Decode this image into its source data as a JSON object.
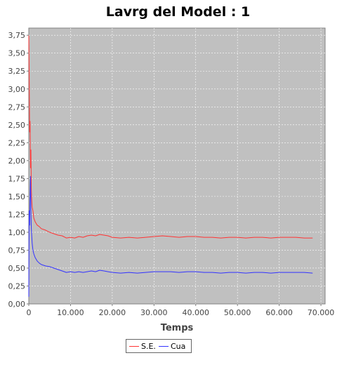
{
  "chart_data": {
    "type": "line",
    "title": "Lavrg del Model : 1",
    "xlabel": "Temps",
    "ylabel": "",
    "xlim": [
      0,
      71000
    ],
    "ylim": [
      0,
      3.85
    ],
    "x_ticks": [
      0,
      10000,
      20000,
      30000,
      40000,
      50000,
      60000,
      70000
    ],
    "x_tick_labels": [
      "0",
      "10.000",
      "20.000",
      "30.000",
      "40.000",
      "50.000",
      "60.000",
      "70.000"
    ],
    "y_ticks": [
      0,
      0.25,
      0.5,
      0.75,
      1.0,
      1.25,
      1.5,
      1.75,
      2.0,
      2.25,
      2.5,
      2.75,
      3.0,
      3.25,
      3.5,
      3.75
    ],
    "y_tick_labels": [
      "0,00",
      "0,25",
      "0,50",
      "0,75",
      "1,00",
      "1,25",
      "1,50",
      "1,75",
      "2,00",
      "2,25",
      "2,50",
      "2,75",
      "3,00",
      "3,25",
      "3,50",
      "3,75"
    ],
    "grid": true,
    "legend_position": "bottom",
    "plot_background": "#c0c0c0",
    "series": [
      {
        "name": "S.E.",
        "color": "#ff3333",
        "x": [
          0,
          100,
          200,
          300,
          400,
          500,
          600,
          700,
          800,
          1000,
          1200,
          1500,
          2000,
          2500,
          3000,
          4000,
          5000,
          6000,
          7000,
          8000,
          9000,
          10000,
          11000,
          12000,
          13000,
          14000,
          15000,
          16000,
          17000,
          18000,
          19000,
          20000,
          22000,
          24000,
          26000,
          28000,
          30000,
          32000,
          34000,
          36000,
          38000,
          40000,
          42000,
          44000,
          46000,
          48000,
          50000,
          52000,
          54000,
          56000,
          58000,
          60000,
          62000,
          64000,
          66000,
          68000
        ],
        "y": [
          3.75,
          3.2,
          2.4,
          2.55,
          1.9,
          2.15,
          1.6,
          1.45,
          1.35,
          1.3,
          1.2,
          1.15,
          1.1,
          1.08,
          1.05,
          1.03,
          1.0,
          0.98,
          0.96,
          0.95,
          0.92,
          0.93,
          0.92,
          0.94,
          0.93,
          0.95,
          0.96,
          0.95,
          0.97,
          0.96,
          0.95,
          0.93,
          0.92,
          0.93,
          0.92,
          0.93,
          0.94,
          0.95,
          0.94,
          0.93,
          0.94,
          0.94,
          0.93,
          0.93,
          0.92,
          0.93,
          0.93,
          0.92,
          0.93,
          0.93,
          0.92,
          0.93,
          0.93,
          0.93,
          0.92,
          0.92
        ]
      },
      {
        "name": "Cua",
        "color": "#3333ff",
        "x": [
          0,
          100,
          200,
          300,
          400,
          500,
          600,
          700,
          800,
          1000,
          1200,
          1500,
          2000,
          2500,
          3000,
          4000,
          5000,
          6000,
          7000,
          8000,
          9000,
          10000,
          11000,
          12000,
          13000,
          14000,
          15000,
          16000,
          17000,
          18000,
          19000,
          20000,
          22000,
          24000,
          26000,
          28000,
          30000,
          32000,
          34000,
          36000,
          38000,
          40000,
          42000,
          44000,
          46000,
          48000,
          50000,
          52000,
          54000,
          56000,
          58000,
          60000,
          62000,
          64000,
          66000,
          68000
        ],
        "y": [
          0.1,
          1.3,
          1.1,
          1.5,
          1.78,
          1.35,
          1.05,
          0.95,
          0.85,
          0.75,
          0.7,
          0.65,
          0.6,
          0.57,
          0.55,
          0.53,
          0.52,
          0.5,
          0.48,
          0.46,
          0.44,
          0.45,
          0.44,
          0.45,
          0.44,
          0.45,
          0.46,
          0.45,
          0.47,
          0.46,
          0.45,
          0.44,
          0.43,
          0.44,
          0.43,
          0.44,
          0.45,
          0.45,
          0.45,
          0.44,
          0.45,
          0.45,
          0.44,
          0.44,
          0.43,
          0.44,
          0.44,
          0.43,
          0.44,
          0.44,
          0.43,
          0.44,
          0.44,
          0.44,
          0.44,
          0.43
        ]
      }
    ]
  }
}
